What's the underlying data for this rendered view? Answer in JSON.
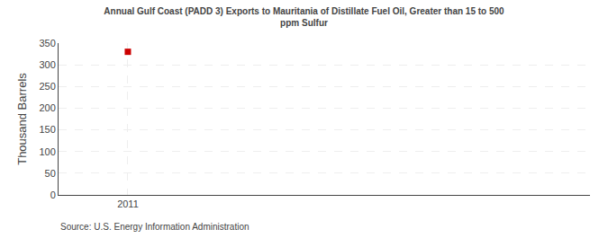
{
  "chart_data": {
    "type": "scatter",
    "title": "Annual Gulf Coast (PADD 3) Exports to Mauritania of Distillate Fuel Oil, Greater than 15 to 500\nppm Sulfur",
    "y_label": "Thousand Barrels",
    "annotations": [
      "Source: U.S. Energy Information Administration"
    ],
    "x": [
      2011
    ],
    "values": [
      330
    ],
    "color": "#cc0000",
    "marker": "square",
    "xlim": [
      2010.7,
      2013.0
    ],
    "xticks": [
      2011
    ],
    "ylim": [
      0,
      350
    ],
    "yticks": [
      0,
      50,
      100,
      150,
      200,
      250,
      300,
      350
    ],
    "grid": true
  }
}
